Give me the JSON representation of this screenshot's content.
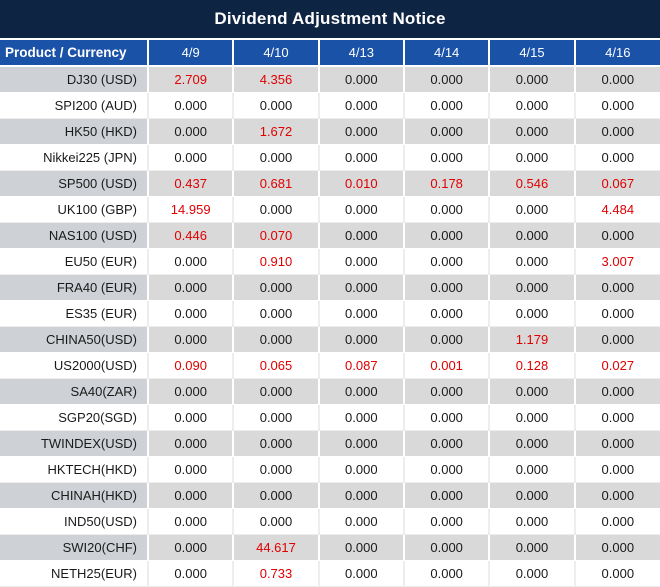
{
  "title": "Dividend Adjustment Notice",
  "colors": {
    "title_bg": "#0e2443",
    "header_bg": "#1a52a8",
    "stripe_product_bg": "#ced2d6",
    "stripe_value_bg": "#d9d9d9",
    "text": "#1a1a1a",
    "negative_red": "#e00000"
  },
  "chart_data": {
    "type": "table",
    "title": "Dividend Adjustment Notice",
    "columns": [
      "Product / Currency",
      "4/9",
      "4/10",
      "4/13",
      "4/14",
      "4/15",
      "4/16"
    ],
    "rows": [
      {
        "product": "DJ30 (USD)",
        "values": [
          "2.709",
          "4.356",
          "0.000",
          "0.000",
          "0.000",
          "0.000"
        ],
        "red": [
          1,
          1,
          0,
          0,
          0,
          0
        ]
      },
      {
        "product": "SPI200 (AUD)",
        "values": [
          "0.000",
          "0.000",
          "0.000",
          "0.000",
          "0.000",
          "0.000"
        ],
        "red": [
          0,
          0,
          0,
          0,
          0,
          0
        ]
      },
      {
        "product": "HK50 (HKD)",
        "values": [
          "0.000",
          "1.672",
          "0.000",
          "0.000",
          "0.000",
          "0.000"
        ],
        "red": [
          0,
          1,
          0,
          0,
          0,
          0
        ]
      },
      {
        "product": "Nikkei225 (JPN)",
        "values": [
          "0.000",
          "0.000",
          "0.000",
          "0.000",
          "0.000",
          "0.000"
        ],
        "red": [
          0,
          0,
          0,
          0,
          0,
          0
        ]
      },
      {
        "product": "SP500 (USD)",
        "values": [
          "0.437",
          "0.681",
          "0.010",
          "0.178",
          "0.546",
          "0.067"
        ],
        "red": [
          1,
          1,
          1,
          1,
          1,
          1
        ]
      },
      {
        "product": "UK100 (GBP)",
        "values": [
          "14.959",
          "0.000",
          "0.000",
          "0.000",
          "0.000",
          "4.484"
        ],
        "red": [
          1,
          0,
          0,
          0,
          0,
          1
        ]
      },
      {
        "product": "NAS100 (USD)",
        "values": [
          "0.446",
          "0.070",
          "0.000",
          "0.000",
          "0.000",
          "0.000"
        ],
        "red": [
          1,
          1,
          0,
          0,
          0,
          0
        ]
      },
      {
        "product": "EU50 (EUR)",
        "values": [
          "0.000",
          "0.910",
          "0.000",
          "0.000",
          "0.000",
          "3.007"
        ],
        "red": [
          0,
          1,
          0,
          0,
          0,
          1
        ]
      },
      {
        "product": "FRA40 (EUR)",
        "values": [
          "0.000",
          "0.000",
          "0.000",
          "0.000",
          "0.000",
          "0.000"
        ],
        "red": [
          0,
          0,
          0,
          0,
          0,
          0
        ]
      },
      {
        "product": "ES35 (EUR)",
        "values": [
          "0.000",
          "0.000",
          "0.000",
          "0.000",
          "0.000",
          "0.000"
        ],
        "red": [
          0,
          0,
          0,
          0,
          0,
          0
        ]
      },
      {
        "product": "CHINA50(USD)",
        "values": [
          "0.000",
          "0.000",
          "0.000",
          "0.000",
          "1.179",
          "0.000"
        ],
        "red": [
          0,
          0,
          0,
          0,
          1,
          0
        ]
      },
      {
        "product": "US2000(USD)",
        "values": [
          "0.090",
          "0.065",
          "0.087",
          "0.001",
          "0.128",
          "0.027"
        ],
        "red": [
          1,
          1,
          1,
          1,
          1,
          1
        ]
      },
      {
        "product": "SA40(ZAR)",
        "values": [
          "0.000",
          "0.000",
          "0.000",
          "0.000",
          "0.000",
          "0.000"
        ],
        "red": [
          0,
          0,
          0,
          0,
          0,
          0
        ]
      },
      {
        "product": "SGP20(SGD)",
        "values": [
          "0.000",
          "0.000",
          "0.000",
          "0.000",
          "0.000",
          "0.000"
        ],
        "red": [
          0,
          0,
          0,
          0,
          0,
          0
        ]
      },
      {
        "product": "TWINDEX(USD)",
        "values": [
          "0.000",
          "0.000",
          "0.000",
          "0.000",
          "0.000",
          "0.000"
        ],
        "red": [
          0,
          0,
          0,
          0,
          0,
          0
        ]
      },
      {
        "product": "HKTECH(HKD)",
        "values": [
          "0.000",
          "0.000",
          "0.000",
          "0.000",
          "0.000",
          "0.000"
        ],
        "red": [
          0,
          0,
          0,
          0,
          0,
          0
        ]
      },
      {
        "product": "CHINAH(HKD)",
        "values": [
          "0.000",
          "0.000",
          "0.000",
          "0.000",
          "0.000",
          "0.000"
        ],
        "red": [
          0,
          0,
          0,
          0,
          0,
          0
        ]
      },
      {
        "product": "IND50(USD)",
        "values": [
          "0.000",
          "0.000",
          "0.000",
          "0.000",
          "0.000",
          "0.000"
        ],
        "red": [
          0,
          0,
          0,
          0,
          0,
          0
        ]
      },
      {
        "product": "SWI20(CHF)",
        "values": [
          "0.000",
          "44.617",
          "0.000",
          "0.000",
          "0.000",
          "0.000"
        ],
        "red": [
          0,
          1,
          0,
          0,
          0,
          0
        ]
      },
      {
        "product": "NETH25(EUR)",
        "values": [
          "0.000",
          "0.733",
          "0.000",
          "0.000",
          "0.000",
          "0.000"
        ],
        "red": [
          0,
          1,
          0,
          0,
          0,
          0
        ]
      }
    ]
  }
}
